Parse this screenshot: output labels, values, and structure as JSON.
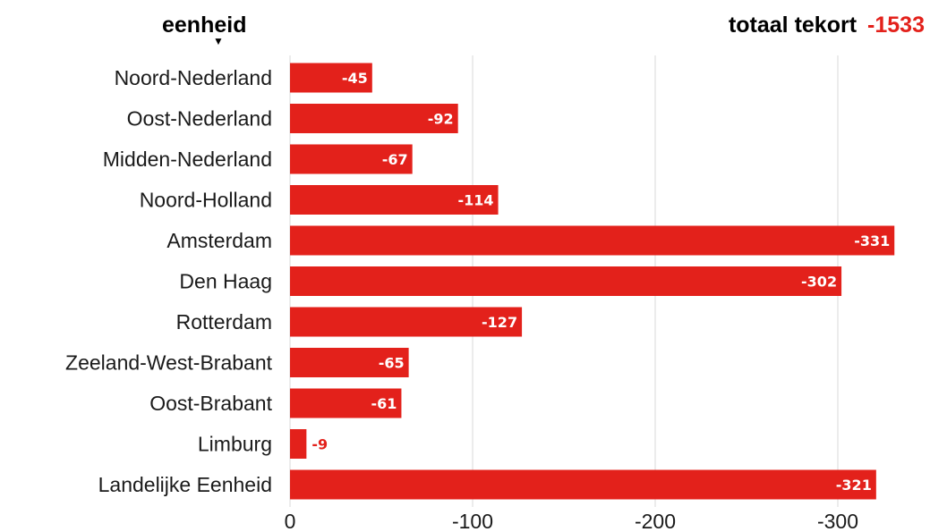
{
  "header": {
    "column_label": "eenheid",
    "sort_icon": "triangle-down-icon",
    "total_label": "totaal tekort",
    "total_value": "-1533"
  },
  "colors": {
    "bar": "#e3211b",
    "bar_label": "#ffffff",
    "outside_label": "#e3211b",
    "grid": "#d9d9d9",
    "text": "#1a1a1a"
  },
  "chart_data": {
    "type": "bar",
    "orientation": "horizontal",
    "categories": [
      "Noord-Nederland",
      "Oost-Nederland",
      "Midden-Nederland",
      "Noord-Holland",
      "Amsterdam",
      "Den Haag",
      "Rotterdam",
      "Zeeland-West-Brabant",
      "Oost-Brabant",
      "Limburg",
      "Landelijke Eenheid"
    ],
    "values": [
      -45,
      -92,
      -67,
      -114,
      -331,
      -302,
      -127,
      -65,
      -61,
      -9,
      -321
    ],
    "value_labels": [
      "-45",
      "-92",
      "-67",
      "-114",
      "-331",
      "-302",
      "-127",
      "-65",
      "-61",
      "-9",
      "-321"
    ],
    "x_ticks": [
      0,
      -100,
      -200,
      -300
    ],
    "x_tick_labels": [
      "0",
      "-100",
      "-200",
      "-300"
    ],
    "xlim": [
      0,
      -345
    ],
    "grid": "vertical",
    "xlabel": "",
    "ylabel": ""
  }
}
